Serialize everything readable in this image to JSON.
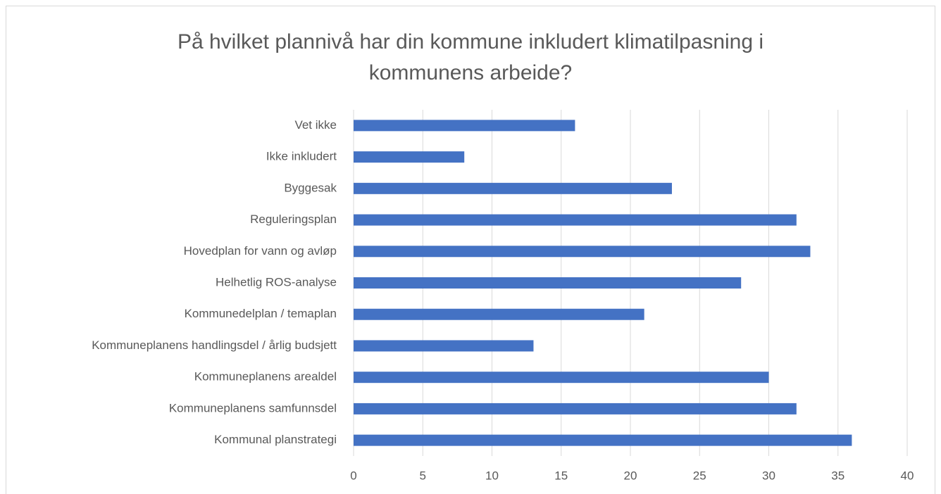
{
  "chart_data": {
    "type": "barh",
    "title": "På hvilket plannivå har din kommune inkludert klimatilpasning i kommunens arbeide?",
    "categories": [
      "Vet ikke",
      "Ikke inkludert",
      "Byggesak",
      "Reguleringsplan",
      "Hovedplan for vann og avløp",
      "Helhetlig ROS-analyse",
      "Kommunedelplan / temaplan",
      "Kommuneplanens handlingsdel / årlig budsjett",
      "Kommuneplanens arealdel",
      "Kommuneplanens samfunnsdel",
      "Kommunal planstrategi"
    ],
    "values": [
      16,
      8,
      23,
      32,
      33,
      28,
      21,
      13,
      30,
      32,
      36
    ],
    "color": "#4472c4",
    "xlim": [
      0,
      40
    ],
    "xticks": [
      0,
      5,
      10,
      15,
      20,
      25,
      30,
      35,
      40
    ],
    "grid": true
  }
}
